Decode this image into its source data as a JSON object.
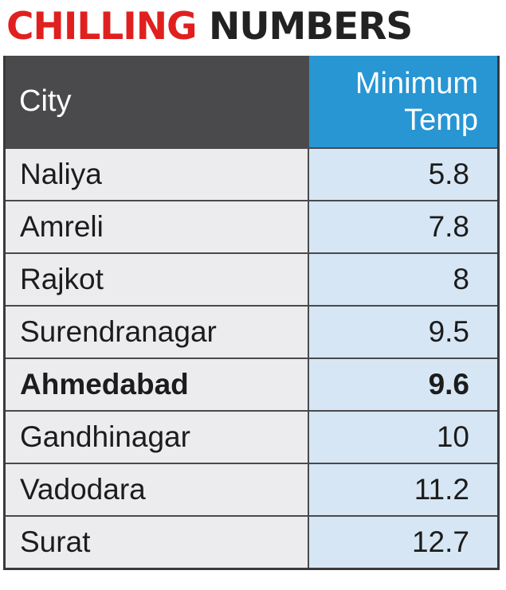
{
  "headline": {
    "part1": "CHILLING",
    "part2": "NUMBERS"
  },
  "chart_data": {
    "type": "table",
    "title": "CHILLING NUMBERS",
    "columns": [
      "City",
      "Minimum\nTemp"
    ],
    "rows": [
      {
        "city": "Naliya",
        "temp": "5.8",
        "highlight": false
      },
      {
        "city": "Amreli",
        "temp": "7.8",
        "highlight": false
      },
      {
        "city": "Rajkot",
        "temp": "8",
        "highlight": false
      },
      {
        "city": "Surendranagar",
        "temp": "9.5",
        "highlight": false
      },
      {
        "city": "Ahmedabad",
        "temp": "9.6",
        "highlight": true
      },
      {
        "city": "Gandhinagar",
        "temp": "10",
        "highlight": false
      },
      {
        "city": "Vadodara",
        "temp": "11.2",
        "highlight": false
      },
      {
        "city": "Surat",
        "temp": "12.7",
        "highlight": false
      }
    ]
  },
  "colors": {
    "headline_red": "#e0201e",
    "header_dark": "#4a4a4c",
    "header_blue": "#2796d3",
    "city_cell": "#ececee",
    "temp_cell": "#d6e6f4"
  }
}
